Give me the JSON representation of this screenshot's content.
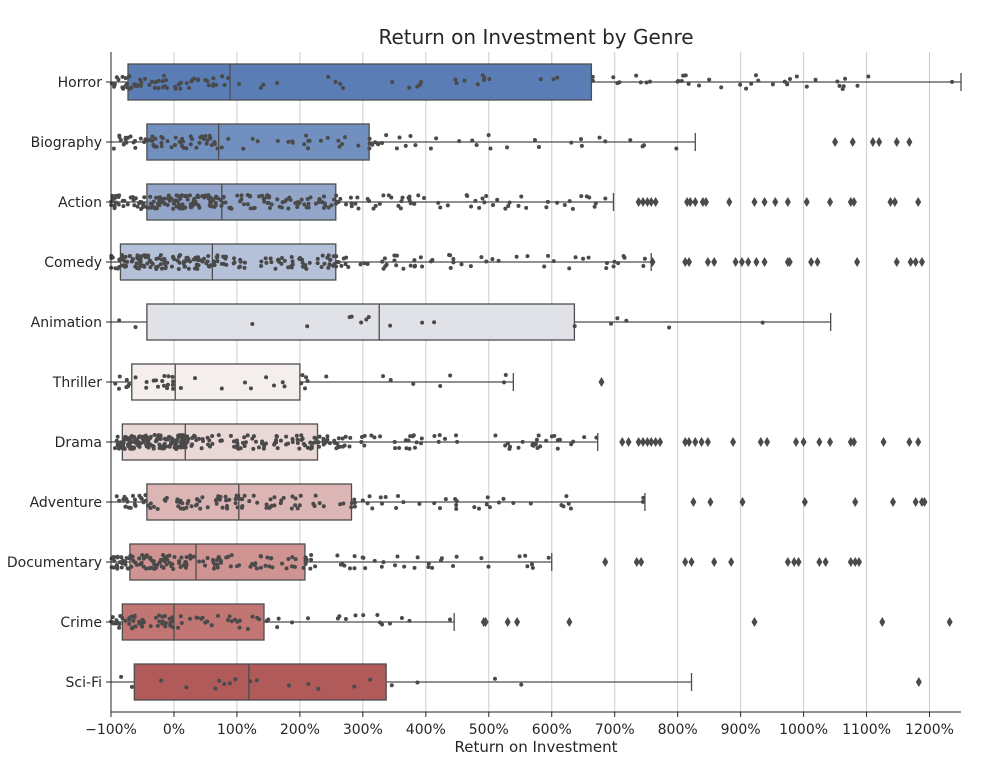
{
  "chart_data": {
    "type": "box",
    "orientation": "horizontal",
    "title": "Return on Investment by Genre",
    "xlabel": "Return on Investment",
    "ylabel": "",
    "xlim": [
      -100,
      1250
    ],
    "xticks": [
      -100,
      0,
      100,
      200,
      300,
      400,
      500,
      600,
      700,
      800,
      900,
      1000,
      1100,
      1200
    ],
    "xtick_labels": [
      "−100%",
      "0%",
      "100%",
      "200%",
      "300%",
      "400%",
      "500%",
      "600%",
      "700%",
      "800%",
      "900%",
      "1000%",
      "1100%",
      "1200%"
    ],
    "x_grid": true,
    "point_color": "#4a4a4a",
    "categories": [
      "Horror",
      "Biography",
      "Action",
      "Comedy",
      "Animation",
      "Thriller",
      "Drama",
      "Adventure",
      "Documentary",
      "Crime",
      "Sci-Fi"
    ],
    "boxes": [
      {
        "genre": "Horror",
        "color": "#5a7db5",
        "q1": -73,
        "median": 89,
        "q3": 663,
        "whisker_low": -100,
        "whisker_high": 1250,
        "outliers": [],
        "n_points": 120,
        "spread_max": 1240
      },
      {
        "genre": "Biography",
        "color": "#7290bf",
        "q1": -43,
        "median": 71,
        "q3": 310,
        "whisker_low": -100,
        "whisker_high": 828,
        "outliers": [
          1050,
          1078,
          1110,
          1120,
          1148,
          1168
        ],
        "n_points": 110,
        "spread_max": 828
      },
      {
        "genre": "Action",
        "color": "#93a6c9",
        "q1": -43,
        "median": 76,
        "q3": 257,
        "whisker_low": -100,
        "whisker_high": 698,
        "outliers": [
          738,
          745,
          752,
          758,
          765,
          815,
          820,
          828,
          840,
          845,
          882,
          922,
          938,
          955,
          975,
          1005,
          1042,
          1075,
          1080,
          1138,
          1145,
          1182
        ],
        "n_points": 260,
        "spread_max": 698
      },
      {
        "genre": "Comedy",
        "color": "#b4c1d8",
        "q1": -85,
        "median": 61,
        "q3": 257,
        "whisker_low": -100,
        "whisker_high": 758,
        "outliers": [
          760,
          812,
          818,
          848,
          858,
          892,
          902,
          912,
          925,
          938,
          975,
          978,
          1012,
          1022,
          1085,
          1148,
          1170,
          1178,
          1188
        ],
        "n_points": 240,
        "spread_max": 758
      },
      {
        "genre": "Animation",
        "color": "#e0e2e7",
        "q1": -43,
        "median": 326,
        "q3": 636,
        "whisker_low": -100,
        "whisker_high": 1043,
        "outliers": [],
        "n_points": 18,
        "spread_max": 1043
      },
      {
        "genre": "Thriller",
        "color": "#f4efec",
        "q1": -67,
        "median": 2,
        "q3": 200,
        "whisker_low": -100,
        "whisker_high": 539,
        "outliers": [
          679
        ],
        "n_points": 45,
        "spread_max": 539
      },
      {
        "genre": "Drama",
        "color": "#ead8d7",
        "q1": -82,
        "median": 18,
        "q3": 228,
        "whisker_low": -100,
        "whisker_high": 673,
        "outliers": [
          712,
          722,
          738,
          745,
          752,
          758,
          765,
          772,
          812,
          818,
          828,
          838,
          848,
          888,
          932,
          942,
          988,
          1000,
          1025,
          1042,
          1075,
          1080,
          1127,
          1168,
          1182
        ],
        "n_points": 300,
        "spread_max": 673
      },
      {
        "genre": "Adventure",
        "color": "#dbb6b4",
        "q1": -43,
        "median": 103,
        "q3": 282,
        "whisker_low": -100,
        "whisker_high": 748,
        "outliers": [
          825,
          852,
          903,
          1002,
          1082,
          1142,
          1178,
          1188,
          1192
        ],
        "n_points": 140,
        "spread_max": 748
      },
      {
        "genre": "Documentary",
        "color": "#cf9492",
        "q1": -70,
        "median": 35,
        "q3": 208,
        "whisker_low": -100,
        "whisker_high": 600,
        "outliers": [
          685,
          735,
          742,
          812,
          822,
          858,
          885,
          975,
          985,
          992,
          1025,
          1035,
          1075,
          1082,
          1088
        ],
        "n_points": 170,
        "spread_max": 600
      },
      {
        "genre": "Crime",
        "color": "#c27674",
        "q1": -82,
        "median": 0,
        "q3": 143,
        "whisker_low": -100,
        "whisker_high": 445,
        "outliers": [
          492,
          495,
          530,
          545,
          628,
          922,
          1125,
          1232
        ],
        "n_points": 90,
        "spread_max": 445
      },
      {
        "genre": "Sci-Fi",
        "color": "#b05a5a",
        "q1": -63,
        "median": 119,
        "q3": 337,
        "whisker_low": -100,
        "whisker_high": 822,
        "outliers": [
          1183
        ],
        "n_points": 20,
        "spread_max": 822
      }
    ]
  }
}
